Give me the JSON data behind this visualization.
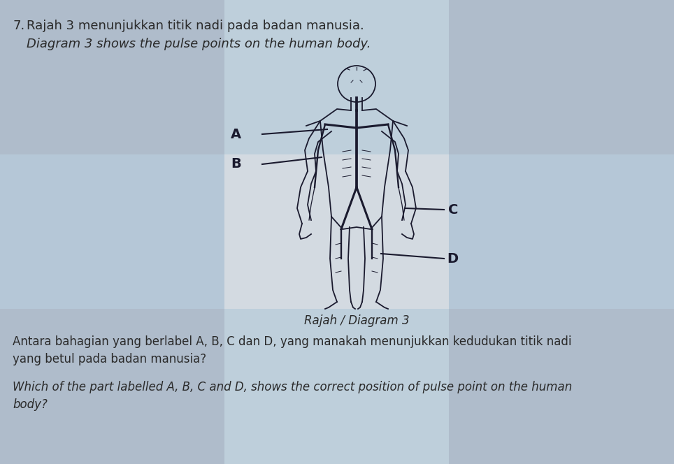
{
  "background_color": "#cdd5dc",
  "title_number": "7.",
  "title_malay": "Rajah 3 menunjukkan titik nadi pada badan manusia.",
  "title_english": "Diagram 3 shows the pulse points on the human body.",
  "caption": "Rajah / Diagram 3",
  "question_malay": "Antara bahagian yang berlabel A, B, C dan D, yang manakah menunjukkan kedudukan titik nadi",
  "question_malay2": "yang betul pada badan manusia?",
  "question_english": "Which of the part labelled A, B, C and D, shows the correct position of pulse point on the human",
  "question_english2": "body?",
  "fig_width": 9.64,
  "fig_height": 6.64,
  "fig_dpi": 100,
  "label_A": "A",
  "label_B": "B",
  "label_C": "C",
  "label_D": "D",
  "label_fontsize": 14,
  "title_fontsize": 13,
  "body_text_fontsize": 12
}
